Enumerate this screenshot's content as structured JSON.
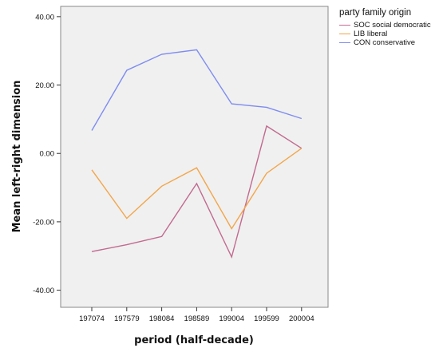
{
  "chart_data": {
    "type": "line",
    "xlabel": "period (half-decade)",
    "ylabel": "Mean left-right dimension",
    "categories": [
      "197074",
      "197579",
      "198084",
      "198589",
      "199004",
      "199599",
      "200004"
    ],
    "ylim": [
      -45,
      43
    ],
    "yticks": [
      40,
      20,
      0,
      -20,
      -40
    ],
    "ytick_labels": [
      "40.00",
      "20.00",
      "0.00",
      "-20.00",
      "-40.00"
    ],
    "grid": false,
    "legend": {
      "title": "party family origin",
      "placement": "right-top-outside"
    },
    "series": [
      {
        "name": "SOC social democratic",
        "color": "#c26a8e",
        "values": [
          -28.7,
          -26.7,
          -24.3,
          -8.8,
          -30.3,
          8.0,
          1.5
        ]
      },
      {
        "name": "LIB liberal",
        "color": "#f2a64a",
        "values": [
          -4.8,
          -19.0,
          -9.6,
          -4.2,
          -22.0,
          -5.8,
          1.5
        ]
      },
      {
        "name": "CON conservative",
        "color": "#7e8cf0",
        "values": [
          6.7,
          24.3,
          29.0,
          30.3,
          14.5,
          13.5,
          10.2
        ]
      }
    ]
  }
}
